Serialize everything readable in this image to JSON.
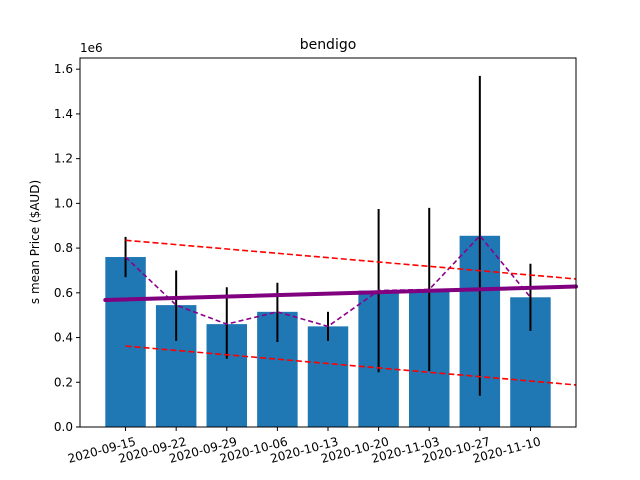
{
  "chart_data": {
    "type": "bar",
    "title": "bendigo",
    "xlabel": "",
    "ylabel": "s mean Price ($AUD)",
    "y_scale_label": "1e6",
    "ylim": [
      0,
      1650000
    ],
    "yticks": [
      0,
      200000,
      400000,
      600000,
      800000,
      1000000,
      1200000,
      1400000,
      1600000
    ],
    "ytick_labels": [
      "0.0",
      "0.2",
      "0.4",
      "0.6",
      "0.8",
      "1.0",
      "1.2",
      "1.4",
      "1.6"
    ],
    "xlim": [
      -0.9,
      8.9
    ],
    "categories": [
      "2020-09-15",
      "2020-09-22",
      "2020-09-29",
      "2020-10-06",
      "2020-10-13",
      "2020-10-20",
      "2020-11-03",
      "2020-10-27",
      "2020-11-10"
    ],
    "values": [
      760000,
      545000,
      460000,
      515000,
      450000,
      610000,
      615000,
      855000,
      580000
    ],
    "error_low": [
      670000,
      385000,
      305000,
      380000,
      385000,
      245000,
      250000,
      140000,
      430000
    ],
    "error_high": [
      850000,
      700000,
      625000,
      645000,
      515000,
      975000,
      980000,
      1570000,
      730000
    ],
    "moving_line": [
      760000,
      545000,
      460000,
      515000,
      450000,
      610000,
      615000,
      855000,
      580000
    ],
    "trend_line": {
      "x": [
        -0.4,
        8.9
      ],
      "y": [
        568000,
        628000
      ]
    },
    "upper_band": {
      "x": [
        0,
        8.9
      ],
      "y": [
        835000,
        662000
      ]
    },
    "lower_band": {
      "x": [
        0,
        8.9
      ],
      "y": [
        362000,
        188000
      ]
    },
    "grid": false,
    "colors": {
      "bar": "#1f77b4",
      "error_bar": "#000000",
      "moving_line": "#8b008b",
      "trend_line": "#800080",
      "bands": "#ff0000"
    }
  }
}
